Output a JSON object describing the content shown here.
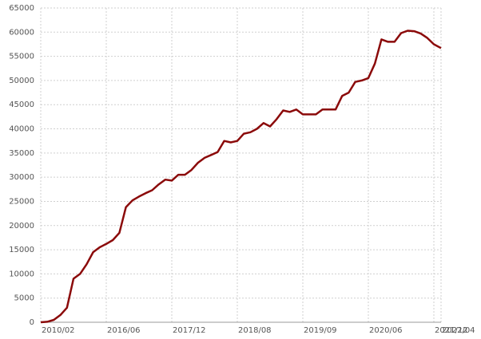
{
  "chart_data": {
    "type": "line",
    "categories": [
      "2010/02",
      null,
      null,
      null,
      null,
      null,
      null,
      null,
      null,
      null,
      "2016/06",
      null,
      null,
      null,
      null,
      null,
      null,
      null,
      null,
      null,
      "2017/12",
      null,
      null,
      null,
      null,
      null,
      null,
      null,
      null,
      null,
      "2018/08",
      null,
      null,
      null,
      null,
      null,
      null,
      null,
      null,
      null,
      "2019/09",
      null,
      null,
      null,
      null,
      null,
      null,
      null,
      null,
      null,
      "2020/06",
      null,
      null,
      null,
      null,
      null,
      null,
      null,
      null,
      null,
      "2021/12",
      "2022/04"
    ],
    "series": [
      {
        "color": "#8b0a0a",
        "values": [
          0,
          100,
          500,
          1500,
          3000,
          9000,
          10000,
          12000,
          14500,
          15500,
          16200,
          17000,
          18500,
          23800,
          25200,
          26000,
          26700,
          27300,
          28500,
          29500,
          29300,
          30500,
          30500,
          31500,
          33000,
          34000,
          34600,
          35200,
          37500,
          37200,
          37500,
          39000,
          39300,
          40000,
          41200,
          40500,
          42000,
          43800,
          43500,
          44000,
          43000,
          43000,
          43000,
          44000,
          44000,
          44000,
          46800,
          47500,
          49700,
          50000,
          50500,
          53500,
          58500,
          58000,
          58000,
          59800,
          60300,
          60200,
          59700,
          58800,
          57500,
          56700
        ]
      }
    ],
    "ylim": [
      0,
      65000
    ],
    "yticks": [
      0,
      5000,
      10000,
      15000,
      20000,
      25000,
      30000,
      35000,
      40000,
      45000,
      50000,
      55000,
      60000,
      65000
    ],
    "grid": true
  }
}
